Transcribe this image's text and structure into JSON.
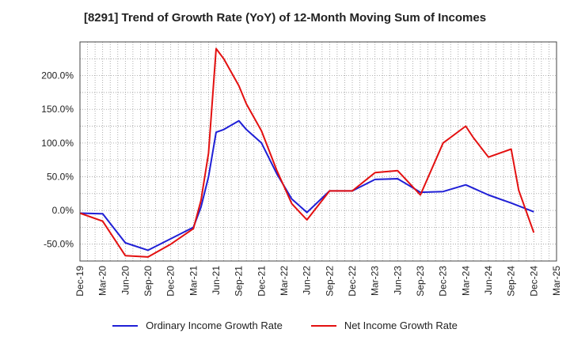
{
  "chart_data": {
    "type": "line",
    "title": "[8291]  Trend of Growth Rate (YoY) of 12-Month Moving Sum of Incomes",
    "xlabel": "",
    "ylabel": "",
    "x_tick_labels": [
      "Dec-19",
      "Mar-20",
      "Jun-20",
      "Sep-20",
      "Dec-20",
      "Mar-21",
      "Jun-21",
      "Sep-21",
      "Dec-21",
      "Mar-22",
      "Jun-22",
      "Sep-22",
      "Dec-22",
      "Mar-23",
      "Jun-23",
      "Sep-23",
      "Dec-23",
      "Mar-24",
      "Jun-24",
      "Sep-24",
      "Dec-24",
      "Mar-25"
    ],
    "y_ticks": [
      -50,
      0,
      50,
      100,
      150,
      200
    ],
    "y_tick_labels": [
      "-50.0%",
      "0.0%",
      "50.0%",
      "100.0%",
      "150.0%",
      "200.0%"
    ],
    "ylim": [
      -75,
      250
    ],
    "grid": true,
    "legend_position": "bottom",
    "series": [
      {
        "name": "Ordinary Income Growth Rate",
        "color": "#1f1fd6",
        "points": [
          {
            "x": "Dec-19",
            "y": -4
          },
          {
            "x": "Mar-20",
            "y": -5
          },
          {
            "x": "Jun-20",
            "y": -48
          },
          {
            "x": "Sep-20",
            "y": -59
          },
          {
            "x": "Dec-20",
            "y": -42
          },
          {
            "x": "Mar-21",
            "y": -25
          },
          {
            "x": "Apr-21",
            "y": 5
          },
          {
            "x": "May-21",
            "y": 50
          },
          {
            "x": "Jun-21",
            "y": 116
          },
          {
            "x": "Jul-21",
            "y": 120
          },
          {
            "x": "Sep-21",
            "y": 133
          },
          {
            "x": "Oct-21",
            "y": 120
          },
          {
            "x": "Dec-21",
            "y": 100
          },
          {
            "x": "Feb-22",
            "y": 55
          },
          {
            "x": "Apr-22",
            "y": 17
          },
          {
            "x": "Jun-22",
            "y": -3
          },
          {
            "x": "Sep-22",
            "y": 29
          },
          {
            "x": "Dec-22",
            "y": 29
          },
          {
            "x": "Mar-23",
            "y": 46
          },
          {
            "x": "Jun-23",
            "y": 47
          },
          {
            "x": "Sep-23",
            "y": 27
          },
          {
            "x": "Dec-23",
            "y": 28
          },
          {
            "x": "Mar-24",
            "y": 38
          },
          {
            "x": "Jun-24",
            "y": 23
          },
          {
            "x": "Sep-24",
            "y": 11
          },
          {
            "x": "Dec-24",
            "y": -2
          }
        ]
      },
      {
        "name": "Net Income Growth Rate",
        "color": "#e31010",
        "points": [
          {
            "x": "Dec-19",
            "y": -4
          },
          {
            "x": "Mar-20",
            "y": -16
          },
          {
            "x": "Jun-20",
            "y": -67
          },
          {
            "x": "Sep-20",
            "y": -69
          },
          {
            "x": "Dec-20",
            "y": -50
          },
          {
            "x": "Mar-21",
            "y": -27
          },
          {
            "x": "Apr-21",
            "y": 15
          },
          {
            "x": "May-21",
            "y": 85
          },
          {
            "x": "Jun-21",
            "y": 240
          },
          {
            "x": "Jul-21",
            "y": 225
          },
          {
            "x": "Sep-21",
            "y": 185
          },
          {
            "x": "Oct-21",
            "y": 158
          },
          {
            "x": "Dec-21",
            "y": 118
          },
          {
            "x": "Feb-22",
            "y": 60
          },
          {
            "x": "Apr-22",
            "y": 10
          },
          {
            "x": "Jun-22",
            "y": -14
          },
          {
            "x": "Sep-22",
            "y": 29
          },
          {
            "x": "Dec-22",
            "y": 29
          },
          {
            "x": "Mar-23",
            "y": 56
          },
          {
            "x": "Jun-23",
            "y": 59
          },
          {
            "x": "Sep-23",
            "y": 23
          },
          {
            "x": "Dec-23",
            "y": 100
          },
          {
            "x": "Mar-24",
            "y": 125
          },
          {
            "x": "Apr-24",
            "y": 108
          },
          {
            "x": "Jun-24",
            "y": 79
          },
          {
            "x": "Sep-24",
            "y": 91
          },
          {
            "x": "Oct-24",
            "y": 30
          },
          {
            "x": "Dec-24",
            "y": -33
          }
        ]
      }
    ]
  }
}
